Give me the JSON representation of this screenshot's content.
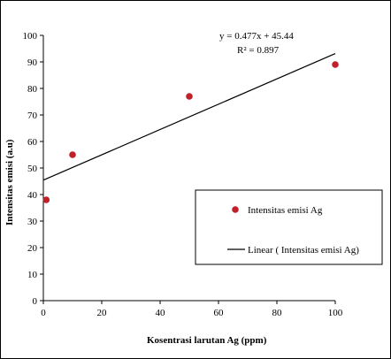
{
  "chart_data": {
    "type": "scatter",
    "x_axis_title": "Kosentrasi larutan Ag (ppm)",
    "y_axis_title": "Intensitas emisi (a.u)",
    "xlim": [
      0,
      100
    ],
    "ylim": [
      0,
      100
    ],
    "x_ticks": [
      "0",
      "20",
      "40",
      "60",
      "80",
      "100"
    ],
    "y_ticks": [
      "0",
      "10",
      "20",
      "30",
      "40",
      "50",
      "60",
      "70",
      "80",
      "90",
      "100"
    ],
    "grid": false,
    "series": [
      {
        "name": "Intensitas emisi Ag",
        "marker_color": "#c0202a",
        "points": [
          {
            "x": 1,
            "y": 38
          },
          {
            "x": 10,
            "y": 55
          },
          {
            "x": 50,
            "y": 77
          },
          {
            "x": 100,
            "y": 89
          }
        ]
      }
    ],
    "trendline": {
      "name": "Linear ( Intensitas emisi Ag)",
      "slope": 0.477,
      "intercept": 45.44,
      "x_range": [
        0,
        100
      ],
      "color": "#000000",
      "equation_label": "y = 0.477x + 45.44",
      "r2_label": "R² = 0.897"
    },
    "legend": {
      "position": "right",
      "entries": [
        "Intensitas emisi Ag",
        "Linear ( Intensitas emisi Ag)"
      ]
    }
  }
}
